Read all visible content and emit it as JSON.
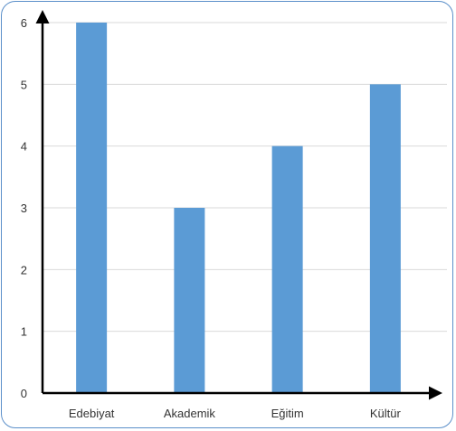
{
  "chart_data": {
    "type": "bar",
    "categories": [
      "Edebiyat",
      "Akademik",
      "Eğitim",
      "Kültür"
    ],
    "values": [
      6,
      3,
      4,
      5
    ],
    "title": "",
    "xlabel": "",
    "ylabel": "",
    "ylim": [
      0,
      6
    ],
    "yticks": [
      "0",
      "1",
      "2",
      "3",
      "4",
      "5",
      "6"
    ],
    "grid": true,
    "legend": "none",
    "colors": {
      "bar": "#5b9bd5",
      "grid": "#d9d9d9",
      "axis": "#000000",
      "frame": "#5b8fc9"
    }
  }
}
